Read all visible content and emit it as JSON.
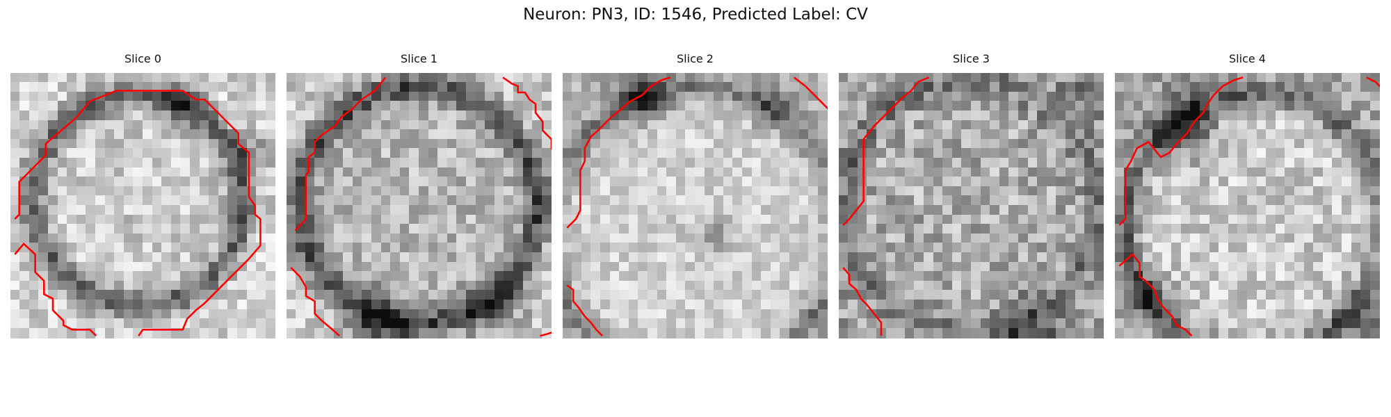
{
  "figure": {
    "title": "Neuron: PN3, ID: 1546, Predicted Label: CV"
  },
  "slices": [
    {
      "title": "Slice 0"
    },
    {
      "title": "Slice 1"
    },
    {
      "title": "Slice 2"
    },
    {
      "title": "Slice 3"
    },
    {
      "title": "Slice 4"
    }
  ],
  "style": {
    "contour_color": "#ff0000",
    "colormap": "gray"
  }
}
